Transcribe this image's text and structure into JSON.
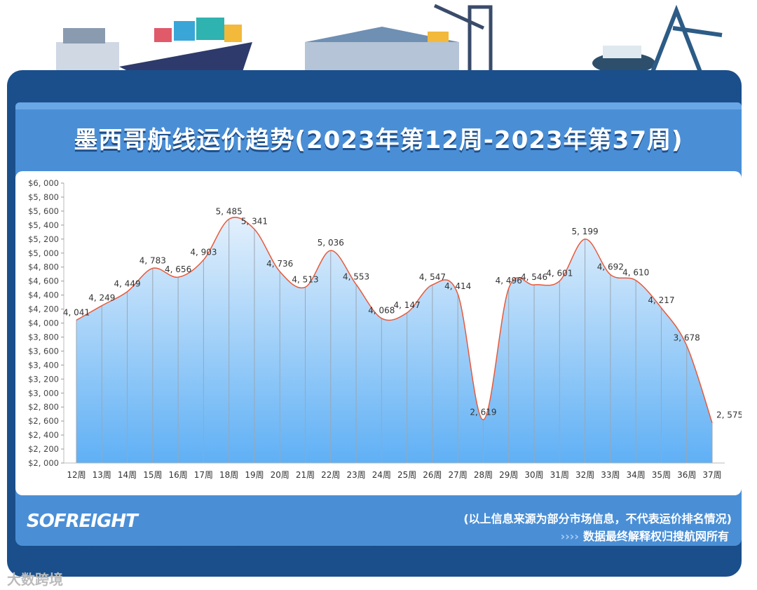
{
  "header": {
    "title": "墨西哥航线运价趋势(2023年第12周-2023年第37周)"
  },
  "footer": {
    "logo": "SOFREIGHT",
    "note": "(以上信息来源为部分市场信息，不代表运价排名情况)",
    "arrows": "››››",
    "rights": "数据最终解释权归搜航网所有"
  },
  "watermark": "大数跨境",
  "colors": {
    "line": "#e8593a",
    "area_top": "#e3f0fc",
    "area_bottom": "#5fb0f5",
    "frame": "#1a4f8b",
    "panel": "#4a8fd6"
  },
  "chart_data": {
    "type": "area",
    "categories": [
      "12周",
      "13周",
      "14周",
      "15周",
      "16周",
      "17周",
      "18周",
      "19周",
      "20周",
      "21周",
      "22周",
      "23周",
      "24周",
      "25周",
      "26周",
      "27周",
      "28周",
      "29周",
      "30周",
      "31周",
      "32周",
      "33周",
      "34周",
      "35周",
      "36周",
      "37周"
    ],
    "values": [
      4041,
      4249,
      4449,
      4783,
      4656,
      4903,
      5485,
      5341,
      4736,
      4513,
      5036,
      4553,
      4068,
      4147,
      4547,
      4414,
      2619,
      4496,
      4546,
      4601,
      5199,
      4692,
      4610,
      4217,
      3678,
      2575
    ],
    "data_labels": [
      "4, 041",
      "4, 249",
      "4, 449",
      "4, 783",
      "4, 656",
      "4, 903",
      "5, 485",
      "5, 341",
      "4, 736",
      "4, 513",
      "5, 036",
      "4, 553",
      "4, 068",
      "4, 147",
      "4, 547",
      "4, 414",
      "2, 619",
      "4, 496",
      "4, 546",
      "4, 601",
      "5, 199",
      "4, 692",
      "4, 610",
      "4, 217",
      "3, 678",
      "2, 575"
    ],
    "yticks": [
      "$2, 000",
      "$2, 200",
      "$2, 400",
      "$2, 600",
      "$2, 800",
      "$3, 000",
      "$3, 200",
      "$3, 400",
      "$3, 600",
      "$3, 800",
      "$4, 000",
      "$4, 200",
      "$4, 400",
      "$4, 600",
      "$4, 800",
      "$5, 000",
      "$5, 200",
      "$5, 400",
      "$5, 600",
      "$5, 800",
      "$6, 000"
    ],
    "ylim": [
      2000,
      6000
    ],
    "smooth": true,
    "grid": false
  }
}
